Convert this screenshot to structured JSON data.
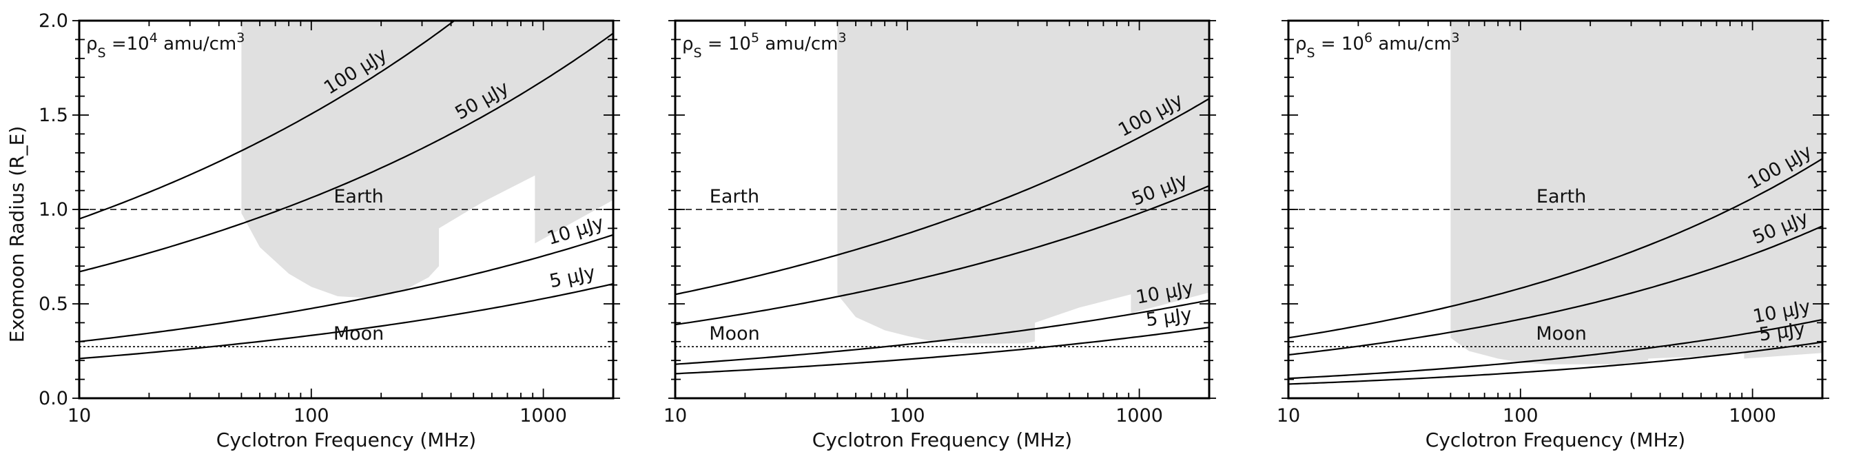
{
  "colors": {
    "shade": "#e0e0e0",
    "line": "#000000",
    "frame": "#000000"
  },
  "axes": {
    "xlabel": "Cyclotron Frequency (MHz)",
    "ylabel": "Exomoon Radius (R_E)",
    "xscale": "log",
    "xlim": [
      10,
      2000
    ],
    "ylim": [
      0,
      2.0
    ],
    "xtick_labels": [
      "10",
      "100",
      "1000"
    ],
    "ytick_labels": [
      "0.0",
      "0.5",
      "1.0",
      "1.5",
      "2.0"
    ]
  },
  "reference_lines": [
    {
      "label": "Earth",
      "y": 1.0,
      "style": "dashed"
    },
    {
      "label": "Moon",
      "y": 0.273,
      "style": "dotted"
    }
  ],
  "shade_region": {
    "description_units": "frequency MHz, radius R_E",
    "x": [
      50,
      50,
      60,
      80,
      100,
      130,
      180,
      250,
      320,
      355,
      355,
      550,
      920,
      920,
      2000,
      2000
    ]
  },
  "chart_data": [
    {
      "type": "line",
      "panel_label": "ρS =10⁴ amu/cm³",
      "density_text": {
        "sym": "ρ",
        "sub": "S",
        "pre": " =10",
        "sup": "4",
        "post": " amu/cm",
        "sup2": "3"
      },
      "series": [
        {
          "name": "100 μJy",
          "x": [
            10,
            2000
          ],
          "a": 0.95,
          "b": 0.2,
          "label_at": 160
        },
        {
          "name": "50 μJy",
          "x": [
            10,
            2000
          ],
          "a": 0.67,
          "b": 0.2,
          "label_at": 560
        },
        {
          "name": "10 μJy",
          "x": [
            10,
            2000
          ],
          "a": 0.3,
          "b": 0.2,
          "label_at": 1400
        },
        {
          "name": "5 μJy",
          "x": [
            10,
            2000
          ],
          "a": 0.21,
          "b": 0.2,
          "label_at": 1350
        }
      ],
      "shade_y": [
        1.13,
        0.98,
        0.8,
        0.66,
        0.59,
        0.54,
        0.53,
        0.57,
        0.64,
        0.7,
        0.9,
        1.04,
        1.18,
        0.82,
        1.05,
        2.0
      ]
    },
    {
      "type": "line",
      "panel_label": "ρS = 10⁵ amu/cm³",
      "density_text": {
        "sym": "ρ",
        "sub": "S",
        "pre": " = 10",
        "sup": "5",
        "post": " amu/cm",
        "sup2": "3"
      },
      "series": [
        {
          "name": "100 μJy",
          "x": [
            10,
            2000
          ],
          "a": 0.55,
          "b": 0.2,
          "label_at": 1150
        },
        {
          "name": "50 μJy",
          "x": [
            10,
            2000
          ],
          "a": 0.39,
          "b": 0.2,
          "label_at": 1250
        },
        {
          "name": "10 μJy",
          "x": [
            10,
            2000
          ],
          "a": 0.18,
          "b": 0.2,
          "label_at": 1300
        },
        {
          "name": "5 μJy",
          "x": [
            10,
            2000
          ],
          "a": 0.13,
          "b": 0.2,
          "label_at": 1350
        }
      ],
      "shade_y": [
        0.63,
        0.55,
        0.43,
        0.36,
        0.33,
        0.3,
        0.29,
        0.29,
        0.29,
        0.3,
        0.4,
        0.48,
        0.55,
        0.45,
        0.56,
        2.0
      ]
    },
    {
      "type": "line",
      "panel_label": "ρS = 10⁶ amu/cm³",
      "density_text": {
        "sym": "ρ",
        "sub": "S",
        "pre": " = 10",
        "sup": "6",
        "post": " amu/cm",
        "sup2": "3"
      },
      "series": [
        {
          "name": "100 μJy",
          "x": [
            10,
            2000
          ],
          "a": 0.32,
          "b": 0.26,
          "label_at": 1350
        },
        {
          "name": "50 μJy",
          "x": [
            10,
            2000
          ],
          "a": 0.23,
          "b": 0.26,
          "label_at": 1350
        },
        {
          "name": "10 μJy",
          "x": [
            10,
            2000
          ],
          "a": 0.105,
          "b": 0.26,
          "label_at": 1350
        },
        {
          "name": "5 μJy",
          "x": [
            10,
            2000
          ],
          "a": 0.075,
          "b": 0.26,
          "label_at": 1350
        }
      ],
      "shade_y": [
        0.37,
        0.32,
        0.25,
        0.21,
        0.19,
        0.18,
        0.18,
        0.18,
        0.19,
        0.2,
        0.21,
        0.22,
        0.24,
        0.21,
        0.24,
        2.0
      ]
    }
  ]
}
